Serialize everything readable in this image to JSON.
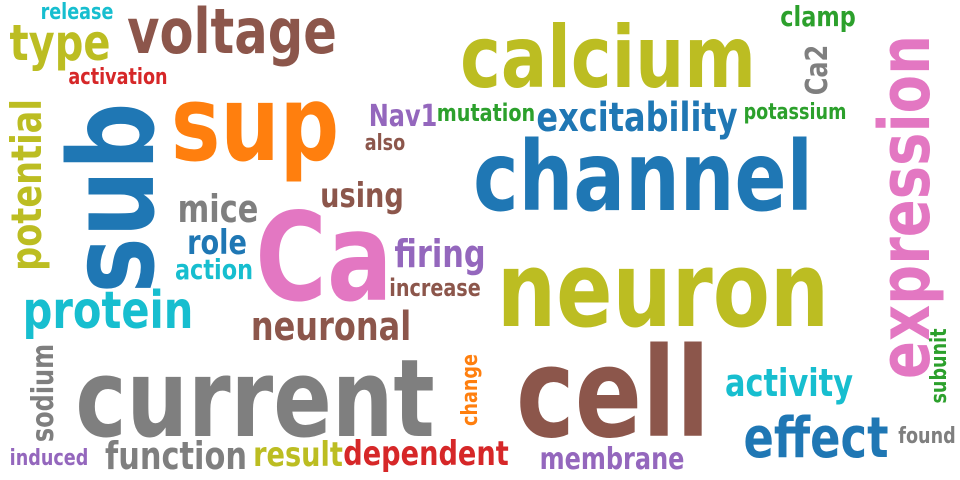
{
  "palette": {
    "blue": "#1f77b4",
    "orange": "#ff7f0e",
    "green": "#2ca02c",
    "red": "#d62728",
    "purple": "#9467bd",
    "brown": "#8c564b",
    "pink": "#e377c2",
    "gray": "#7f7f7f",
    "olive": "#bcbd22",
    "cyan": "#17becf"
  },
  "words": {
    "channel": "channel",
    "calcium": "calcium",
    "neuron": "neuron",
    "current": "current",
    "cell": "cell",
    "ca": "Ca",
    "sup": "sup",
    "sub": "sub",
    "expression": "expression",
    "voltage": "voltage",
    "excitability": "excitability",
    "protein": "protein",
    "effect": "effect",
    "neuronal": "neuronal",
    "type": "type",
    "activity": "activity",
    "potential": "potential",
    "function": "function",
    "firing": "firing",
    "dependent": "dependent",
    "mice": "mice",
    "using": "using",
    "role": "role",
    "membrane": "membrane",
    "action": "action",
    "ca2": "Ca2",
    "result": "result",
    "clamp": "clamp",
    "sodium": "sodium",
    "nav1": "Nav1",
    "increase": "increase",
    "activation": "activation",
    "release": "release",
    "mutation": "mutation",
    "potassium": "potassium",
    "also": "also",
    "induced": "induced",
    "found": "found",
    "change": "change",
    "subunit": "subunit"
  }
}
